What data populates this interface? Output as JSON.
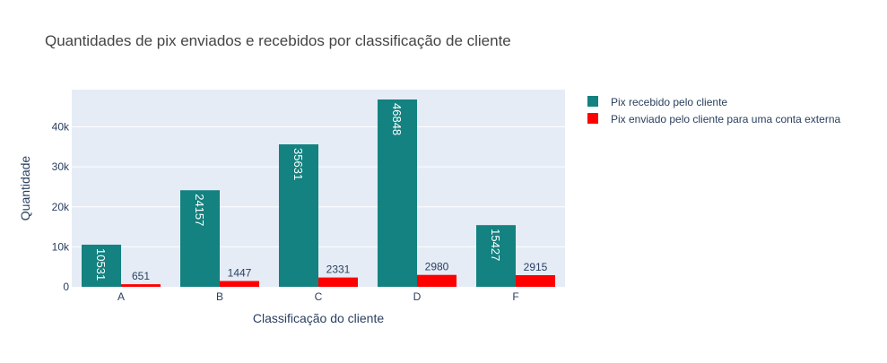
{
  "chart_data": {
    "type": "bar",
    "title": "Quantidades de pix enviados e recebidos por classificação de cliente",
    "xlabel": "Classificação do cliente",
    "ylabel": "Quantidade",
    "categories": [
      "A",
      "B",
      "C",
      "D",
      "F"
    ],
    "ylim": [
      0,
      49315
    ],
    "yticks": [
      0,
      10000,
      20000,
      30000,
      40000
    ],
    "ytick_labels": [
      "0",
      "10k",
      "20k",
      "30k",
      "40k"
    ],
    "grid": true,
    "legend_position": "top-right, outside plot",
    "series": [
      {
        "name": "Pix recebido pelo cliente",
        "color": "#138280",
        "values": [
          10531,
          24157,
          35631,
          46848,
          15427
        ],
        "labels": [
          "10531",
          "24157",
          "35631",
          "46848",
          "15427"
        ],
        "label_position": "inside, rotated"
      },
      {
        "name": "Pix enviado pelo cliente para uma conta externa",
        "color": "#ff0000",
        "values": [
          651,
          1447,
          2331,
          2980,
          2915
        ],
        "labels": [
          "651",
          "1447",
          "2331",
          "2980",
          "2915"
        ],
        "label_position": "outside"
      }
    ],
    "colors": {
      "plot_background": "#e5ecf6",
      "text": "#2a3f5f",
      "title": "#444444"
    }
  }
}
